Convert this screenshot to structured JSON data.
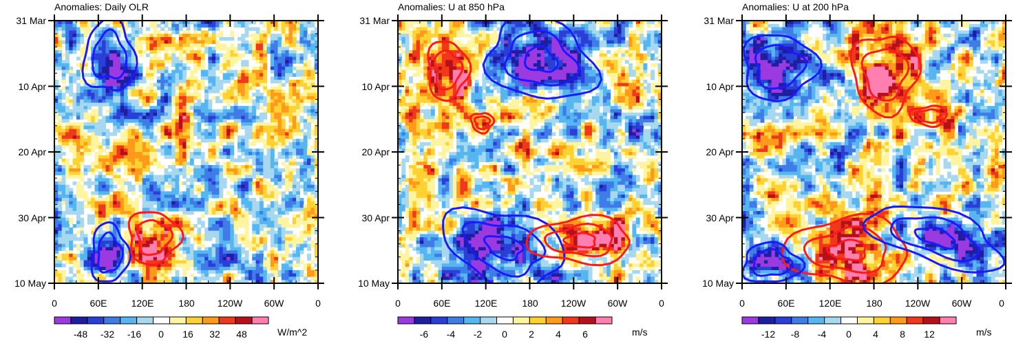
{
  "figure": {
    "colors": {
      "scale": [
        "#9b3ae0",
        "#1e1ea0",
        "#2a3fd8",
        "#3f7ce8",
        "#55b6f0",
        "#a7d8f0",
        "#ffffff",
        "#fff5a0",
        "#ffd233",
        "#ff9a1a",
        "#f0381a",
        "#b8101a",
        "#ff7fb0"
      ],
      "pos_contour": "#ff1a1a",
      "neg_contour": "#1a1aff"
    },
    "y_ticks": [
      "31 Mar",
      "10 Apr",
      "20 Apr",
      "30 Apr",
      "10 May"
    ],
    "x_ticks": [
      "0",
      "60E",
      "120E",
      "180",
      "120W",
      "60W",
      "0"
    ]
  },
  "chart_data": [
    {
      "type": "heatmap",
      "title": "Anomalies: Daily OLR",
      "x_axis": {
        "range": [
          0,
          360
        ],
        "ticks": [
          "0",
          "60E",
          "120E",
          "180",
          "120W",
          "60W",
          "0"
        ],
        "tick_values": [
          0,
          60,
          120,
          180,
          240,
          300,
          360
        ]
      },
      "y_axis": {
        "range": [
          "31 Mar",
          "10 May"
        ],
        "ticks": [
          "31 Mar",
          "10 Apr",
          "20 Apr",
          "30 Apr",
          "10 May"
        ],
        "tick_days": [
          0,
          10,
          20,
          30,
          40
        ]
      },
      "colorbar": {
        "labels": [
          "-48",
          "-32",
          "-16",
          "0",
          "16",
          "32",
          "48"
        ],
        "units": "W/m^2",
        "levels": [
          -56,
          -48,
          -40,
          -32,
          -24,
          -16,
          -8,
          0,
          8,
          16,
          24,
          32,
          40,
          48,
          56
        ]
      },
      "contours": [
        {
          "sign": "negative",
          "lon": [
            40,
            110
          ],
          "day": [
            0,
            11
          ]
        },
        {
          "sign": "negative",
          "lon": [
            50,
            100
          ],
          "day": [
            31,
            40
          ]
        },
        {
          "sign": "positive",
          "lon": [
            100,
            170
          ],
          "day": [
            29,
            37
          ]
        }
      ]
    },
    {
      "type": "heatmap",
      "title": "Anomalies: U at 850 hPa",
      "x_axis": {
        "range": [
          0,
          360
        ],
        "ticks": [
          "0",
          "60E",
          "120E",
          "180",
          "120W",
          "60W",
          "0"
        ],
        "tick_values": [
          0,
          60,
          120,
          180,
          240,
          300,
          360
        ]
      },
      "y_axis": {
        "range": [
          "31 Mar",
          "10 May"
        ],
        "ticks": [
          "31 Mar",
          "10 Apr",
          "20 Apr",
          "30 Apr",
          "10 May"
        ],
        "tick_days": [
          0,
          10,
          20,
          30,
          40
        ]
      },
      "colorbar": {
        "labels": [
          "-6",
          "-4",
          "-2",
          "0",
          "2",
          "4",
          "6"
        ],
        "units": "m/s",
        "levels": [
          -7,
          -6,
          -5,
          -4,
          -3,
          -2,
          -1,
          0,
          1,
          2,
          3,
          4,
          5,
          6,
          7
        ]
      },
      "contours": [
        {
          "sign": "negative",
          "lon": [
            120,
            270
          ],
          "day": [
            0,
            12
          ]
        },
        {
          "sign": "positive",
          "lon": [
            40,
            95
          ],
          "day": [
            3,
            12
          ]
        },
        {
          "sign": "positive",
          "lon": [
            100,
            130
          ],
          "day": [
            14,
            17
          ]
        },
        {
          "sign": "negative",
          "lon": [
            60,
            230
          ],
          "day": [
            29,
            40
          ]
        },
        {
          "sign": "positive",
          "lon": [
            180,
            320
          ],
          "day": [
            30,
            37
          ]
        }
      ]
    },
    {
      "type": "heatmap",
      "title": "Anomalies: U at 200 hPa",
      "x_axis": {
        "range": [
          0,
          360
        ],
        "ticks": [
          "0",
          "60E",
          "120E",
          "180",
          "120W",
          "60W",
          "0"
        ],
        "tick_values": [
          0,
          60,
          120,
          180,
          240,
          300,
          360
        ]
      },
      "y_axis": {
        "range": [
          "31 Mar",
          "10 May"
        ],
        "ticks": [
          "31 Mar",
          "10 Apr",
          "20 Apr",
          "30 Apr",
          "10 May"
        ],
        "tick_days": [
          0,
          10,
          20,
          30,
          40
        ]
      },
      "colorbar": {
        "labels": [
          "-12",
          "-8",
          "-4",
          "0",
          "4",
          "8",
          "12"
        ],
        "units": "m/s",
        "levels": [
          -14,
          -12,
          -10,
          -8,
          -6,
          -4,
          -2,
          0,
          2,
          4,
          6,
          8,
          10,
          12,
          14
        ]
      },
      "contours": [
        {
          "sign": "negative",
          "lon": [
            0,
            100
          ],
          "day": [
            2,
            12
          ]
        },
        {
          "sign": "positive",
          "lon": [
            150,
            240
          ],
          "day": [
            2,
            14
          ]
        },
        {
          "sign": "positive",
          "lon": [
            230,
            280
          ],
          "day": [
            13,
            16
          ]
        },
        {
          "sign": "positive",
          "lon": [
            60,
            230
          ],
          "day": [
            30,
            40
          ]
        },
        {
          "sign": "negative",
          "lon": [
            170,
            360
          ],
          "day": [
            29,
            37
          ]
        },
        {
          "sign": "negative",
          "lon": [
            0,
            80
          ],
          "day": [
            34,
            40
          ]
        }
      ]
    }
  ]
}
